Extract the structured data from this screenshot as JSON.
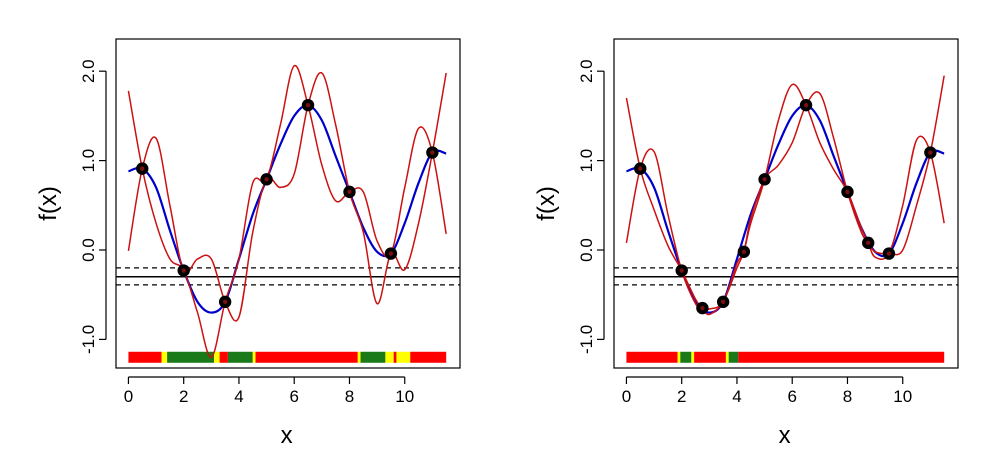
{
  "chart_data": [
    {
      "type": "line",
      "title": "",
      "xlabel": "x",
      "ylabel": "f(x)",
      "xlim": [
        -0.45,
        12.0
      ],
      "ylim": [
        -1.32,
        2.36
      ],
      "grid": false,
      "x_ticks": [
        0,
        2,
        4,
        6,
        8,
        10
      ],
      "x_tick_labels": [
        "0",
        "2",
        "4",
        "6",
        "8",
        "10"
      ],
      "y_ticks": [
        -1.0,
        0.0,
        1.0,
        2.0
      ],
      "y_tick_labels": [
        "-1.0",
        "0.0",
        "1.0",
        "2.0"
      ],
      "colors": {
        "true_function": "#0000cc",
        "bounds": "#cc1111",
        "points": "#000000",
        "point_inner": "#7a1010",
        "hline": "#000000"
      },
      "hlines": {
        "solid": -0.3,
        "dashed": [
          -0.2,
          -0.39
        ]
      },
      "points": {
        "x": [
          0.5,
          2.0,
          3.5,
          5.0,
          6.5,
          8.0,
          9.5,
          11.0
        ],
        "y": [
          0.91,
          -0.23,
          -0.58,
          0.79,
          1.62,
          0.65,
          -0.04,
          1.09
        ]
      },
      "series": [
        {
          "role": "true-function",
          "x": [
            0.0,
            0.5,
            1.0,
            1.5,
            2.0,
            2.5,
            3.0,
            3.5,
            4.0,
            4.5,
            5.0,
            5.5,
            6.0,
            6.5,
            7.0,
            7.5,
            8.0,
            8.5,
            9.0,
            9.5,
            10.0,
            10.5,
            11.0,
            11.5
          ],
          "y": [
            0.88,
            0.91,
            0.7,
            0.22,
            -0.23,
            -0.58,
            -0.7,
            -0.58,
            -0.1,
            0.4,
            0.79,
            1.18,
            1.5,
            1.62,
            1.45,
            1.05,
            0.65,
            0.25,
            -0.02,
            -0.04,
            0.3,
            0.75,
            1.09,
            1.08
          ]
        },
        {
          "role": "bound-a",
          "x": [
            0.0,
            0.5,
            1.0,
            1.5,
            2.0,
            2.5,
            3.0,
            3.5,
            4.0,
            4.5,
            5.0,
            5.5,
            6.0,
            6.5,
            7.0,
            7.5,
            8.0,
            8.5,
            9.0,
            9.5,
            10.0,
            10.5,
            11.0,
            11.5
          ],
          "y": [
            1.78,
            0.91,
            0.3,
            -0.1,
            -0.23,
            -0.7,
            -1.2,
            -0.58,
            -0.1,
            0.75,
            0.79,
            1.4,
            2.06,
            1.62,
            0.95,
            0.55,
            0.65,
            0.65,
            0.1,
            -0.04,
            0.7,
            1.36,
            1.09,
            0.18
          ]
        },
        {
          "role": "bound-b",
          "x": [
            0.0,
            0.5,
            1.0,
            1.5,
            2.0,
            2.5,
            3.0,
            3.5,
            4.0,
            4.5,
            5.0,
            5.5,
            6.0,
            6.5,
            7.0,
            7.5,
            8.0,
            8.5,
            9.0,
            9.5,
            10.0,
            10.5,
            11.0,
            11.5
          ],
          "y": [
            -0.01,
            0.91,
            1.25,
            0.5,
            -0.23,
            -0.1,
            -0.1,
            -0.58,
            -0.75,
            0.2,
            0.79,
            0.7,
            0.85,
            1.62,
            1.98,
            1.4,
            0.65,
            0.2,
            -0.6,
            -0.04,
            -0.22,
            0.3,
            1.09,
            1.98
          ]
        }
      ],
      "indicator_strip": {
        "y": -1.2,
        "segments": [
          {
            "x0": 0.0,
            "x1": 1.2,
            "color": "#ff0000"
          },
          {
            "x0": 1.2,
            "x1": 1.4,
            "color": "#ffff00"
          },
          {
            "x0": 1.4,
            "x1": 3.1,
            "color": "#1a7a1a"
          },
          {
            "x0": 3.1,
            "x1": 3.3,
            "color": "#ffff00"
          },
          {
            "x0": 3.3,
            "x1": 3.6,
            "color": "#ff0000"
          },
          {
            "x0": 3.6,
            "x1": 4.5,
            "color": "#1a7a1a"
          },
          {
            "x0": 4.5,
            "x1": 4.6,
            "color": "#ffff00"
          },
          {
            "x0": 4.6,
            "x1": 8.3,
            "color": "#ff0000"
          },
          {
            "x0": 8.3,
            "x1": 8.4,
            "color": "#ffff00"
          },
          {
            "x0": 8.4,
            "x1": 9.3,
            "color": "#1a7a1a"
          },
          {
            "x0": 9.3,
            "x1": 9.6,
            "color": "#ffff00"
          },
          {
            "x0": 9.6,
            "x1": 9.7,
            "color": "#ff0000"
          },
          {
            "x0": 9.7,
            "x1": 10.2,
            "color": "#ffff00"
          },
          {
            "x0": 10.2,
            "x1": 11.5,
            "color": "#ff0000"
          }
        ]
      }
    },
    {
      "type": "line",
      "title": "",
      "xlabel": "x",
      "ylabel": "f(x)",
      "xlim": [
        -0.45,
        12.0
      ],
      "ylim": [
        -1.32,
        2.36
      ],
      "grid": false,
      "x_ticks": [
        0,
        2,
        4,
        6,
        8,
        10
      ],
      "x_tick_labels": [
        "0",
        "2",
        "4",
        "6",
        "8",
        "10"
      ],
      "y_ticks": [
        -1.0,
        0.0,
        1.0,
        2.0
      ],
      "y_tick_labels": [
        "-1.0",
        "0.0",
        "1.0",
        "2.0"
      ],
      "colors": {
        "true_function": "#0000cc",
        "bounds": "#cc1111",
        "points": "#000000",
        "point_inner": "#7a1010",
        "hline": "#000000"
      },
      "hlines": {
        "solid": -0.3,
        "dashed": [
          -0.2,
          -0.39
        ]
      },
      "points": {
        "x": [
          0.5,
          2.0,
          2.75,
          3.5,
          4.25,
          5.0,
          6.5,
          8.0,
          8.75,
          9.5,
          11.0
        ],
        "y": [
          0.91,
          -0.23,
          -0.65,
          -0.58,
          -0.02,
          0.79,
          1.62,
          0.65,
          0.08,
          -0.04,
          1.09
        ]
      },
      "series": [
        {
          "role": "true-function",
          "x": [
            0.0,
            0.5,
            1.0,
            1.5,
            2.0,
            2.5,
            3.0,
            3.5,
            4.0,
            4.5,
            5.0,
            5.5,
            6.0,
            6.5,
            7.0,
            7.5,
            8.0,
            8.5,
            9.0,
            9.5,
            10.0,
            10.5,
            11.0,
            11.5
          ],
          "y": [
            0.88,
            0.91,
            0.7,
            0.22,
            -0.23,
            -0.58,
            -0.7,
            -0.58,
            -0.1,
            0.4,
            0.79,
            1.18,
            1.5,
            1.62,
            1.45,
            1.05,
            0.65,
            0.25,
            -0.02,
            -0.04,
            0.3,
            0.75,
            1.09,
            1.08
          ]
        },
        {
          "role": "bound-a",
          "x": [
            0.0,
            0.5,
            1.0,
            1.5,
            2.0,
            2.5,
            2.75,
            3.0,
            3.5,
            4.0,
            4.25,
            4.5,
            5.0,
            5.5,
            6.0,
            6.5,
            7.0,
            7.5,
            8.0,
            8.5,
            8.75,
            9.0,
            9.5,
            10.0,
            10.5,
            11.0,
            11.5
          ],
          "y": [
            1.7,
            0.91,
            0.45,
            0.05,
            -0.23,
            -0.55,
            -0.65,
            -0.72,
            -0.58,
            -0.2,
            -0.02,
            0.3,
            0.79,
            1.45,
            1.85,
            1.62,
            1.2,
            0.9,
            0.65,
            0.25,
            0.08,
            -0.08,
            -0.04,
            0.5,
            1.23,
            1.09,
            0.3
          ]
        },
        {
          "role": "bound-b",
          "x": [
            0.0,
            0.5,
            1.0,
            1.5,
            2.0,
            2.5,
            2.75,
            3.0,
            3.5,
            4.0,
            4.25,
            4.5,
            5.0,
            5.5,
            6.0,
            6.5,
            7.0,
            7.5,
            8.0,
            8.5,
            8.75,
            9.0,
            9.5,
            10.0,
            10.5,
            11.0,
            11.5
          ],
          "y": [
            0.08,
            0.91,
            1.1,
            0.4,
            -0.23,
            -0.6,
            -0.65,
            -0.66,
            -0.58,
            -0.15,
            -0.02,
            0.35,
            0.79,
            0.95,
            1.2,
            1.62,
            1.75,
            1.25,
            0.65,
            0.2,
            0.08,
            -0.02,
            -0.04,
            0.0,
            0.5,
            1.09,
            1.95
          ]
        }
      ],
      "indicator_strip": {
        "y": -1.2,
        "segments": [
          {
            "x0": 0.0,
            "x1": 1.85,
            "color": "#ff0000"
          },
          {
            "x0": 1.85,
            "x1": 1.95,
            "color": "#ffff00"
          },
          {
            "x0": 1.95,
            "x1": 2.35,
            "color": "#1a7a1a"
          },
          {
            "x0": 2.35,
            "x1": 2.45,
            "color": "#ffff00"
          },
          {
            "x0": 2.45,
            "x1": 3.6,
            "color": "#ff0000"
          },
          {
            "x0": 3.6,
            "x1": 3.7,
            "color": "#ffff00"
          },
          {
            "x0": 3.7,
            "x1": 4.05,
            "color": "#1a7a1a"
          },
          {
            "x0": 4.05,
            "x1": 11.5,
            "color": "#ff0000"
          }
        ]
      }
    }
  ]
}
